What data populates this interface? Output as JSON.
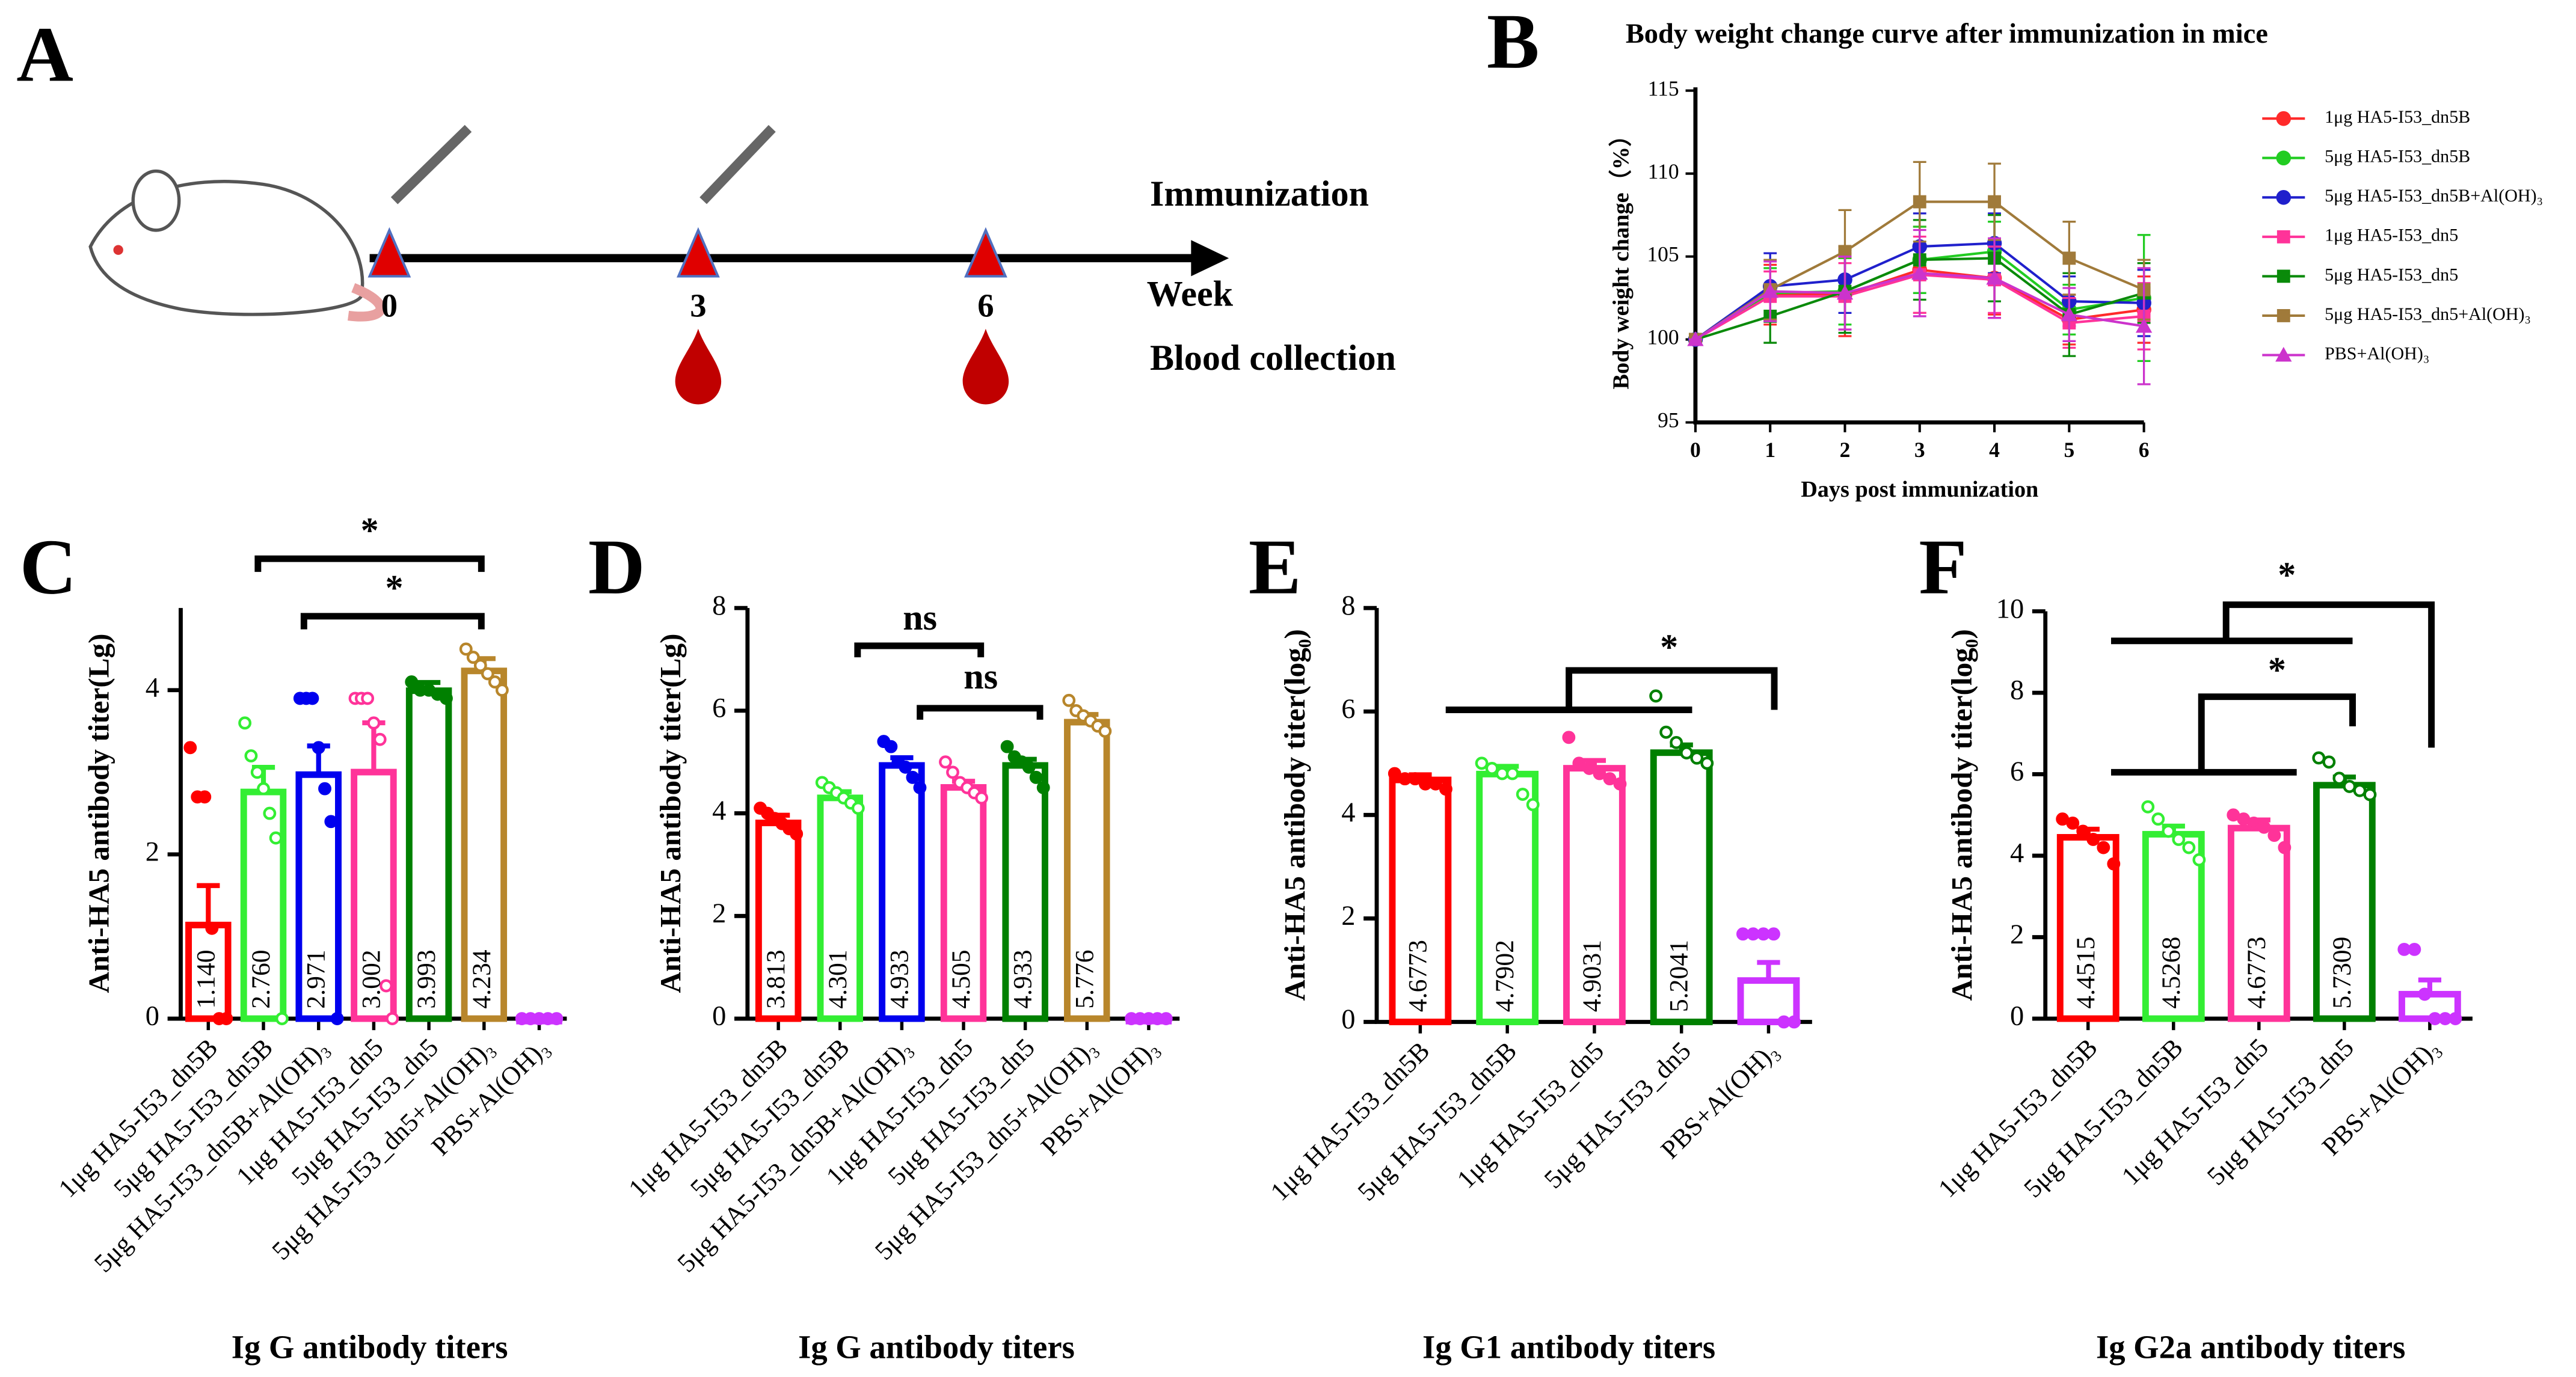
{
  "diagram": {
    "label": "A",
    "weeks": [
      0,
      3,
      6
    ],
    "axis_label": "Week",
    "immunization": "Immunization",
    "blood": "Blood collection"
  },
  "chart_data": [
    {
      "type": "line",
      "label": "B",
      "title": "Body weight change curve after immunization in mice",
      "x_label": "Days post immunization",
      "y_label": "Body weight change（%）",
      "x": [
        0,
        1,
        2,
        3,
        4,
        5,
        6
      ],
      "xlim": [
        0,
        6
      ],
      "xticks": [
        0,
        1,
        2,
        3,
        4,
        5,
        6
      ],
      "ylim": [
        95,
        115
      ],
      "yticks": [
        95,
        100,
        105,
        110,
        115
      ],
      "legend": "right",
      "series": [
        {
          "name": "1μg HA5-I53_dn5B",
          "color": "#ff2a2a",
          "marker": "circle",
          "values": [
            100,
            102.7,
            102.7,
            104.2,
            103.7,
            101.2,
            101.8
          ],
          "errors": [
            0,
            1.8,
            2.5,
            2.6,
            2.2,
            1.5,
            2.0
          ]
        },
        {
          "name": "5μg HA5-I53_dn5B",
          "color": "#22cc22",
          "marker": "circle",
          "values": [
            100,
            102.8,
            102.9,
            104.8,
            105.3,
            101.8,
            102.5
          ],
          "errors": [
            0,
            1.5,
            2.0,
            2.0,
            1.8,
            1.5,
            3.8
          ]
        },
        {
          "name": "5μg HA5-I53_dn5B+Al(OH)₃",
          "color": "#2020cc",
          "marker": "circle",
          "values": [
            100,
            103.2,
            103.6,
            105.6,
            105.8,
            102.3,
            102.2
          ],
          "errors": [
            0,
            2.0,
            2.0,
            2.0,
            1.8,
            1.5,
            2.0
          ]
        },
        {
          "name": "1μg HA5-I53_dn5",
          "color": "#ff3399",
          "marker": "square",
          "values": [
            100,
            102.6,
            102.6,
            103.9,
            103.6,
            101.0,
            101.4
          ],
          "errors": [
            0,
            1.5,
            2.0,
            2.3,
            2.0,
            1.5,
            2.0
          ]
        },
        {
          "name": "5μg HA5-I53_dn5",
          "color": "#0a8a0a",
          "marker": "square",
          "values": [
            100,
            101.4,
            102.9,
            104.8,
            104.9,
            101.5,
            102.8
          ],
          "errors": [
            0,
            1.6,
            2.5,
            2.4,
            2.6,
            2.5,
            1.8
          ]
        },
        {
          "name": "5μg HA5-I53_dn5+Al(OH)₃",
          "color": "#a07a3a",
          "marker": "square",
          "values": [
            100,
            103.0,
            105.3,
            108.3,
            108.3,
            104.9,
            103.0
          ],
          "errors": [
            0,
            1.8,
            2.5,
            2.4,
            2.3,
            2.2,
            1.8
          ]
        },
        {
          "name": "PBS+Al(OH)₃",
          "color": "#cc33cc",
          "marker": "triangle",
          "values": [
            100,
            102.9,
            102.8,
            104.0,
            103.7,
            101.5,
            100.8
          ],
          "errors": [
            0,
            1.8,
            2.2,
            2.6,
            2.4,
            1.6,
            3.5
          ]
        }
      ]
    },
    {
      "type": "bar",
      "label": "C",
      "caption": "Ig G antibody titers",
      "y_label": "Anti-HA5 antibody titer(Lg)",
      "ylim": [
        0,
        5
      ],
      "yticks": [
        0,
        2,
        4
      ],
      "categories": [
        "1μg HA5-I53_dn5B",
        "5μg HA5-I53_dn5B",
        "5μg HA5-I53_dn5B+Al(OH)₃",
        "1μg HA5-I53_dn5",
        "5μg HA5-I53_dn5",
        "5μg HA5-I53_dn5+Al(OH)₃",
        "PBS+Al(OH)₃"
      ],
      "colors": [
        "#ff0000",
        "#33ee33",
        "#0000ee",
        "#ff3399",
        "#008000",
        "#b8862b",
        "#cc33ff"
      ],
      "values": [
        1.14,
        2.76,
        2.971,
        3.002,
        3.993,
        4.234,
        0
      ],
      "value_labels": [
        "1.140",
        "2.760",
        "2.971",
        "3.002",
        "3.993",
        "4.234",
        null
      ],
      "errors": [
        0.48,
        0.3,
        0.35,
        0.6,
        0.1,
        0.15,
        0
      ],
      "points": [
        [
          3.3,
          2.7,
          2.7,
          1.1,
          0,
          0
        ],
        [
          3.6,
          3.2,
          3.0,
          2.8,
          2.5,
          2.2,
          0
        ],
        [
          3.9,
          3.9,
          3.9,
          3.3,
          2.8,
          2.4,
          0
        ],
        [
          3.9,
          3.9,
          3.9,
          3.6,
          3.4,
          0.4,
          0
        ],
        [
          4.1,
          4.0,
          4.0,
          3.95,
          3.9
        ],
        [
          4.5,
          4.4,
          4.3,
          4.2,
          4.1,
          4.0
        ],
        [
          0,
          0,
          0,
          0,
          0
        ]
      ],
      "annotations": [
        "*",
        "*"
      ]
    },
    {
      "type": "bar",
      "label": "D",
      "caption": "Ig G antibody titers",
      "y_label": "Anti-HA5 antibody titer(Lg)",
      "ylim": [
        0,
        8
      ],
      "yticks": [
        0,
        2,
        4,
        6,
        8
      ],
      "categories": [
        "1μg HA5-I53_dn5B",
        "5μg HA5-I53_dn5B",
        "5μg HA5-I53_dn5B+Al(OH)₃",
        "1μg HA5-I53_dn5",
        "5μg HA5-I53_dn5",
        "5μg HA5-I53_dn5+Al(OH)₃",
        "PBS+Al(OH)₃"
      ],
      "colors": [
        "#ff0000",
        "#33ee33",
        "#0000ee",
        "#ff3399",
        "#008000",
        "#b8862b",
        "#cc33ff"
      ],
      "values": [
        3.813,
        4.301,
        4.933,
        4.505,
        4.933,
        5.776,
        0
      ],
      "value_labels": [
        "3.813",
        "4.301",
        "4.933",
        "4.505",
        "4.933",
        "5.776",
        null
      ],
      "errors": [
        0.15,
        0.12,
        0.15,
        0.12,
        0.12,
        0.15,
        0
      ],
      "points": [
        [
          4.1,
          4.0,
          3.9,
          3.8,
          3.7,
          3.6
        ],
        [
          4.6,
          4.5,
          4.4,
          4.3,
          4.2,
          4.1
        ],
        [
          5.4,
          5.3,
          5.0,
          4.9,
          4.7,
          4.5
        ],
        [
          5.0,
          4.8,
          4.6,
          4.5,
          4.4,
          4.3
        ],
        [
          5.3,
          5.1,
          5.0,
          4.9,
          4.7,
          4.5
        ],
        [
          6.2,
          6.0,
          5.9,
          5.8,
          5.7,
          5.6
        ],
        [
          0,
          0,
          0,
          0,
          0
        ]
      ],
      "annotations": [
        "ns",
        "ns"
      ]
    },
    {
      "type": "bar",
      "label": "E",
      "caption": "Ig G1 antibody titers",
      "y_label": "Anti-HA5 antibody titer(log₀)",
      "ylim": [
        0,
        8
      ],
      "yticks": [
        0,
        2,
        4,
        6,
        8
      ],
      "categories": [
        "1μg HA5-I53_dn5B",
        "5μg HA5-I53_dn5B",
        "1μg HA5-I53_dn5",
        "5μg HA5-I53_dn5",
        "PBS+Al(OH)₃"
      ],
      "colors": [
        "#ff0000",
        "#33ee33",
        "#ff3399",
        "#008000",
        "#cc33ff"
      ],
      "values": [
        4.6773,
        4.7902,
        4.9031,
        5.2041,
        0.8
      ],
      "value_labels": [
        "4.6773",
        "4.7902",
        "4.9031",
        "5.2041",
        null
      ],
      "errors": [
        0.1,
        0.15,
        0.15,
        0.15,
        0.35
      ],
      "points": [
        [
          4.8,
          4.7,
          4.7,
          4.6,
          4.6,
          4.5
        ],
        [
          5.0,
          4.9,
          4.8,
          4.8,
          4.4,
          4.2
        ],
        [
          5.5,
          5.0,
          4.9,
          4.8,
          4.7,
          4.6
        ],
        [
          6.3,
          5.6,
          5.4,
          5.2,
          5.1,
          5.0
        ],
        [
          1.7,
          1.7,
          1.7,
          1.7,
          0,
          0
        ]
      ],
      "annotations": [
        "*"
      ]
    },
    {
      "type": "bar",
      "label": "F",
      "caption": "Ig G2a antibody titers",
      "y_label": "Anti-HA5 antibody titer(log₀)",
      "ylim": [
        0,
        10
      ],
      "yticks": [
        0,
        2,
        4,
        6,
        8,
        10
      ],
      "categories": [
        "1μg HA5-I53_dn5B",
        "5μg HA5-I53_dn5B",
        "1μg HA5-I53_dn5",
        "5μg HA5-I53_dn5",
        "PBS+Al(OH)₃"
      ],
      "colors": [
        "#ff0000",
        "#33ee33",
        "#ff3399",
        "#008000",
        "#cc33ff"
      ],
      "values": [
        4.4515,
        4.5268,
        4.6773,
        5.7309,
        0.6
      ],
      "value_labels": [
        "4.4515",
        "4.5268",
        "4.6773",
        "5.7309",
        null
      ],
      "errors": [
        0.2,
        0.2,
        0.2,
        0.2,
        0.35
      ],
      "points": [
        [
          4.9,
          4.8,
          4.6,
          4.4,
          4.2,
          3.8
        ],
        [
          5.2,
          4.9,
          4.6,
          4.4,
          4.2,
          3.9
        ],
        [
          5.0,
          4.9,
          4.8,
          4.7,
          4.5,
          4.2
        ],
        [
          6.4,
          6.3,
          5.9,
          5.7,
          5.6,
          5.5
        ],
        [
          1.7,
          1.7,
          0.6,
          0,
          0,
          0
        ]
      ],
      "annotations": [
        "*",
        "*"
      ]
    }
  ]
}
